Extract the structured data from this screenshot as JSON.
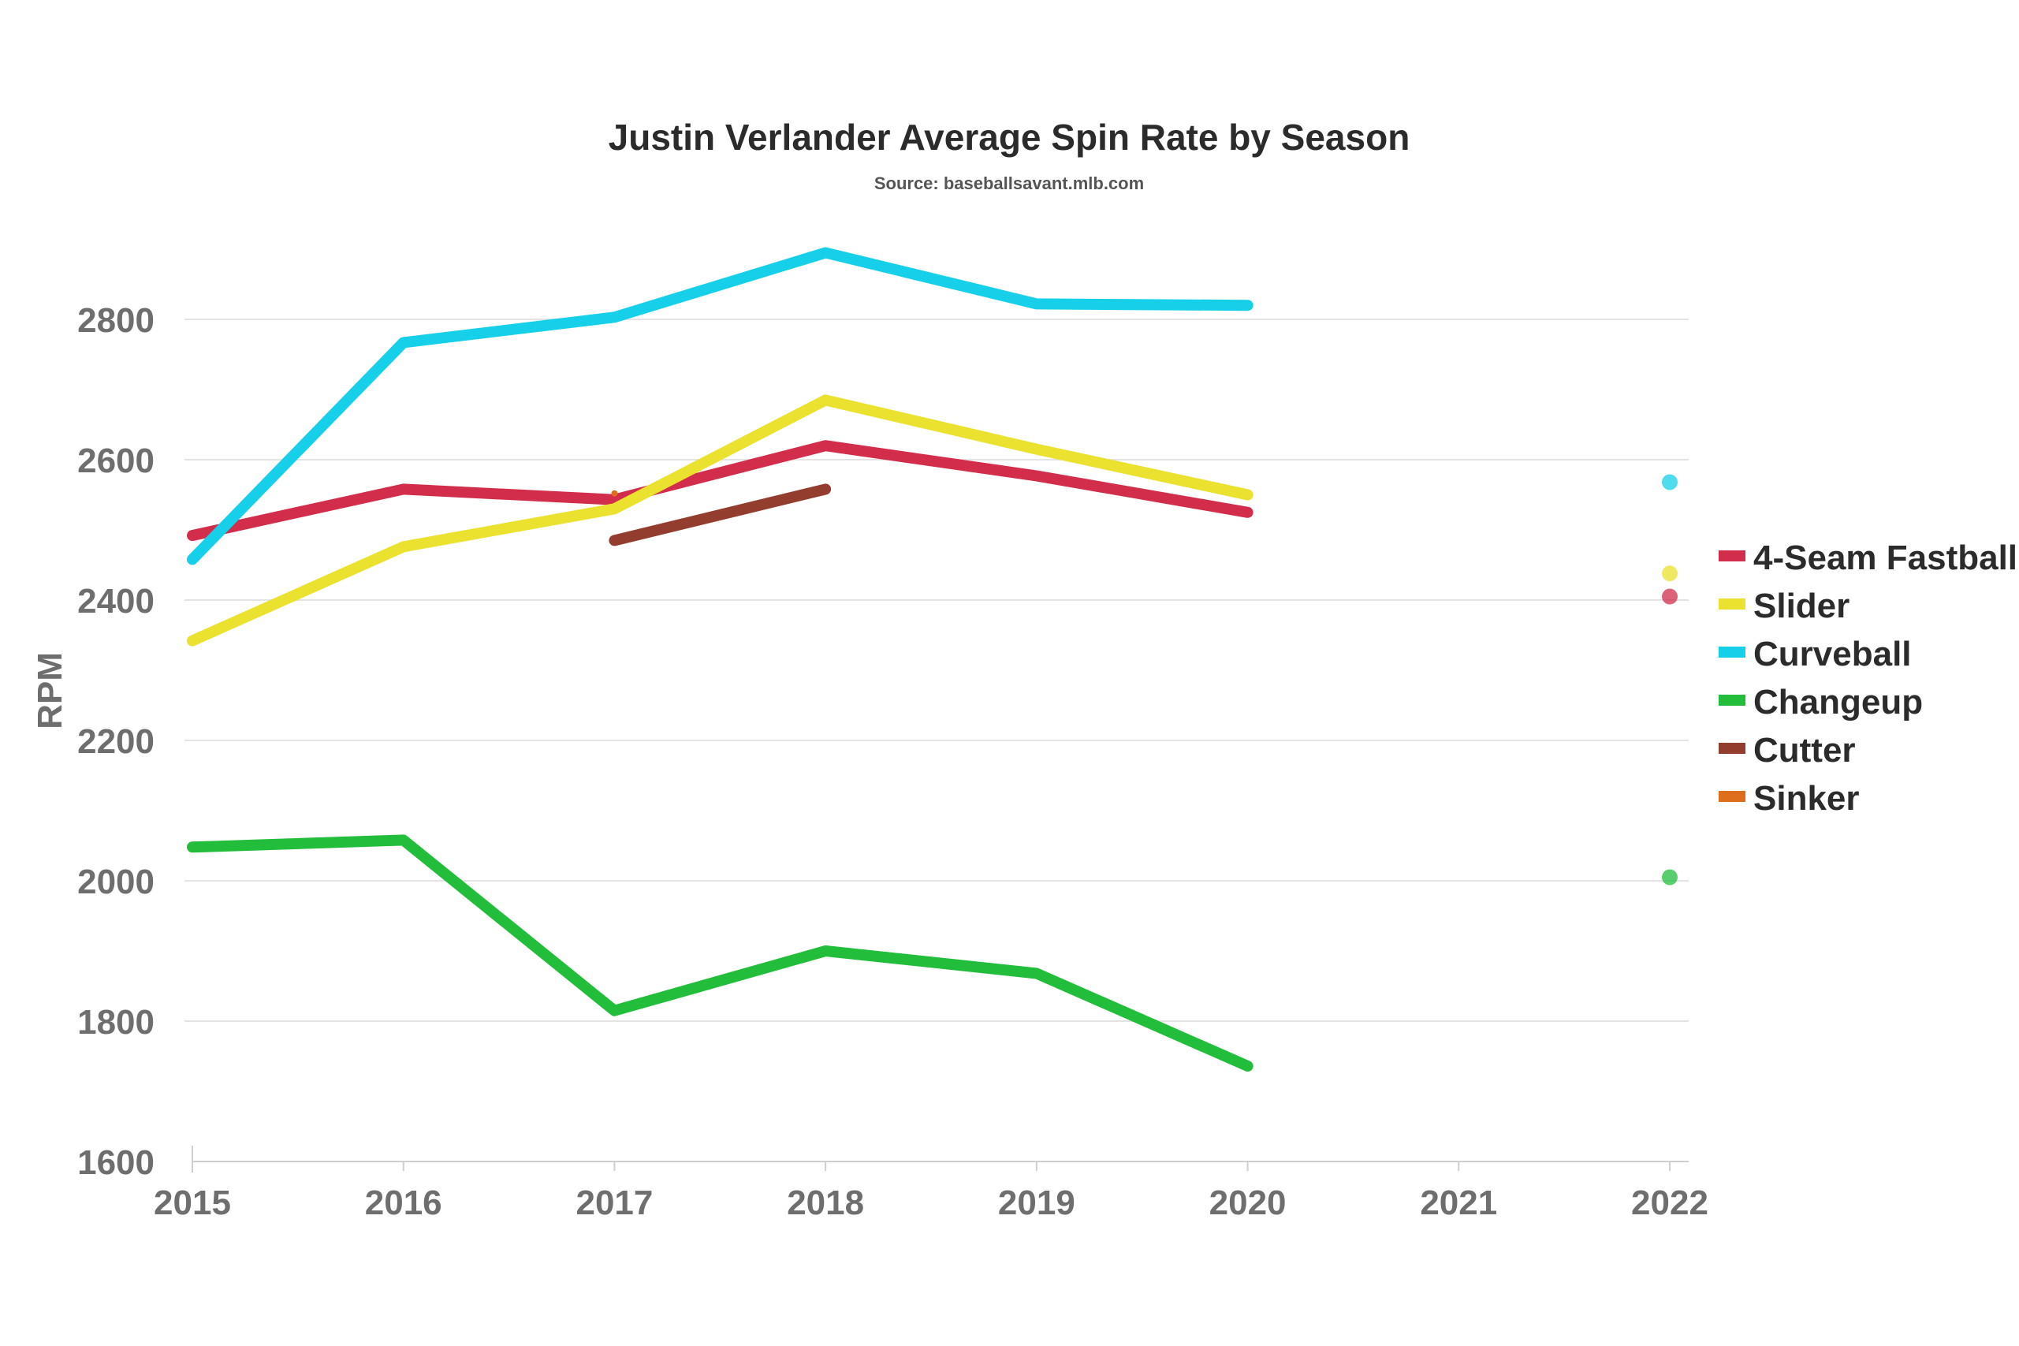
{
  "chart_data": {
    "type": "line",
    "title": "Justin Verlander Average Spin Rate by Season",
    "subtitle": "Source: baseballsavant.mlb.com",
    "xlabel": "",
    "ylabel": "RPM",
    "x": [
      2015,
      2016,
      2017,
      2018,
      2019,
      2020,
      2021,
      2022
    ],
    "x_ticks": [
      "2015",
      "2016",
      "2017",
      "2018",
      "2019",
      "2020",
      "2021",
      "2022"
    ],
    "y_ticks": [
      "1600",
      "1800",
      "2000",
      "2200",
      "2400",
      "2600",
      "2800"
    ],
    "xlim": [
      2015,
      2022
    ],
    "ylim": [
      1600,
      2900
    ],
    "grid": "horizontal",
    "legend_position": "right",
    "series": [
      {
        "name": "4-Seam Fastball",
        "color": "#d22e4c",
        "values": [
          2492,
          2558,
          2543,
          2620,
          2577,
          2525,
          null,
          2405
        ]
      },
      {
        "name": "Slider",
        "color": "#eae22e",
        "values": [
          2342,
          2476,
          2530,
          2685,
          2615,
          2550,
          null,
          2438
        ]
      },
      {
        "name": "Curveball",
        "color": "#16d0ea",
        "values": [
          2458,
          2767,
          2803,
          2895,
          2822,
          2820,
          null,
          2568
        ]
      },
      {
        "name": "Changeup",
        "color": "#22bd3b",
        "values": [
          2048,
          2058,
          1815,
          1900,
          1868,
          1736,
          null,
          2005
        ]
      },
      {
        "name": "Cutter",
        "color": "#923d2e",
        "values": [
          null,
          null,
          2485,
          2558,
          null,
          null,
          null,
          null
        ]
      },
      {
        "name": "Sinker",
        "color": "#de6e1c",
        "values": [
          null,
          null,
          2552,
          null,
          null,
          null,
          null,
          null
        ]
      }
    ]
  }
}
